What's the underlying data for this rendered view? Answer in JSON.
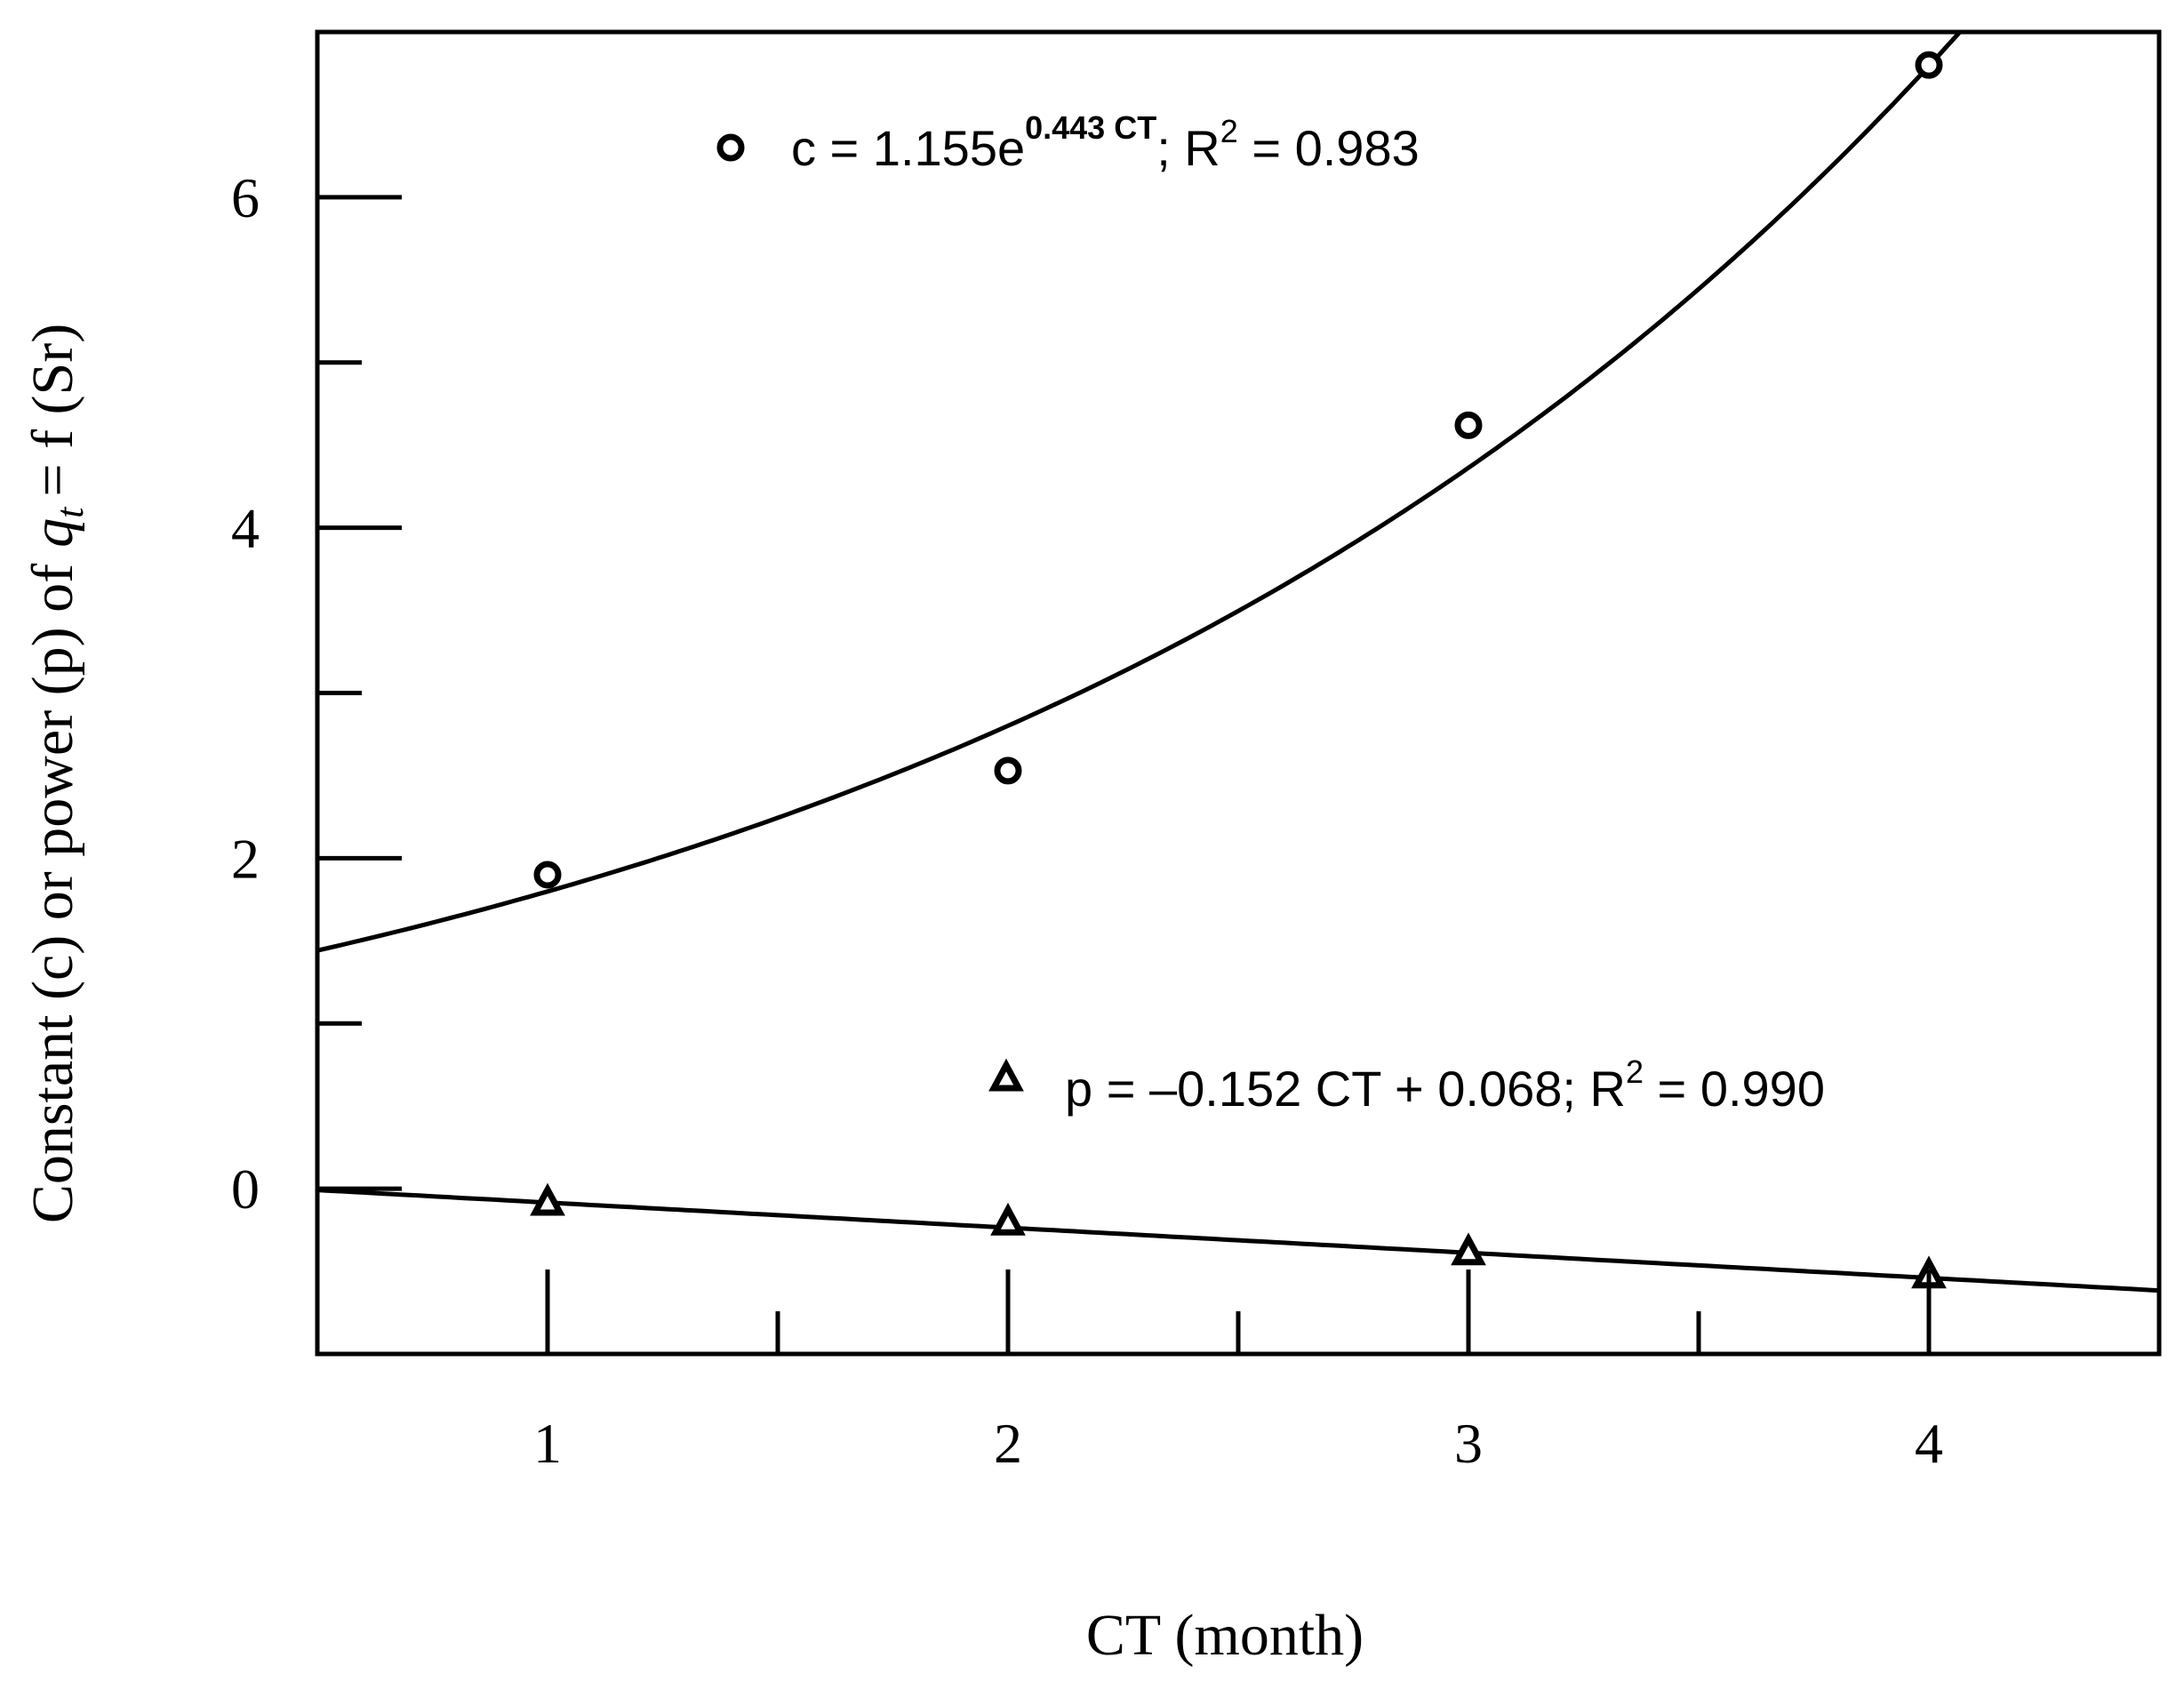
{
  "chart_data": {
    "type": "scatter",
    "xlabel": "CT (month)",
    "ylabel": {
      "prefix": "Constant (c) or power (p) of",
      "var": "q",
      "sub": "t",
      "suffix": "= f (Sr)"
    },
    "xlim": [
      0.5,
      4.5
    ],
    "ylim": [
      -1,
      7
    ],
    "x_ticks": [
      1,
      2,
      3,
      4
    ],
    "x_minor_ticks": [
      1.5,
      2.5,
      3.5
    ],
    "y_ticks": [
      0,
      2,
      4,
      6
    ],
    "y_minor_ticks": [
      1,
      3,
      5
    ],
    "series": [
      {
        "name": "c",
        "marker": "circle",
        "x": [
          1,
          2,
          3,
          4
        ],
        "y": [
          1.9,
          2.53,
          4.62,
          6.8
        ],
        "fit": {
          "kind": "exponential",
          "a": 1.155,
          "b": 0.443
        },
        "legend": {
          "lhs": "c = 1.155e",
          "exp": "0.443 CT",
          "mid": "; R",
          "r2sup": "2",
          "rhs": " = 0.983"
        }
      },
      {
        "name": "p",
        "marker": "triangle",
        "x": [
          1,
          2,
          3,
          4
        ],
        "y": [
          -0.08,
          -0.2,
          -0.38,
          -0.52
        ],
        "fit": {
          "kind": "linear",
          "slope": -0.152,
          "intercept": 0.068
        },
        "legend": {
          "lhs": "p = –0.152 CT + 0.068; R",
          "r2sup": "2",
          "rhs": " = 0.990"
        }
      }
    ]
  }
}
